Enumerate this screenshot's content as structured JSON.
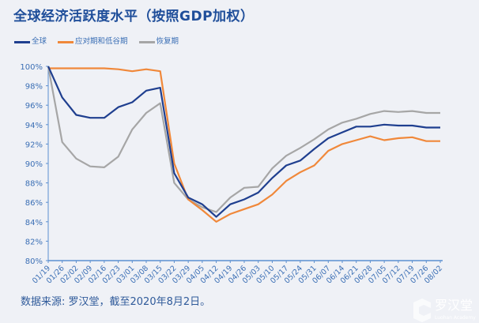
{
  "chart_data": {
    "type": "line",
    "title": "全球经济活跃度水平（按照GDP加权）",
    "xlabel": "",
    "ylabel": "",
    "ylim": [
      80,
      100
    ],
    "yticks": [
      "80%",
      "82%",
      "84%",
      "86%",
      "88%",
      "90%",
      "92%",
      "94%",
      "96%",
      "98%",
      "100%"
    ],
    "categories": [
      "01/19",
      "01/26",
      "02/02",
      "02/09",
      "02/16",
      "02/23",
      "03/01",
      "03/08",
      "03/15",
      "03/22",
      "03/29",
      "04/05",
      "04/12",
      "04/19",
      "04/26",
      "05/03",
      "05/10",
      "05/17",
      "05/24",
      "05/31",
      "06/07",
      "06/14",
      "06/21",
      "06/28",
      "07/05",
      "07/12",
      "07/19",
      "07/26",
      "08/02"
    ],
    "grid": false,
    "legend": "top-left",
    "series": [
      {
        "name": "全球",
        "color": "#1f3f8f",
        "values": [
          100,
          96.8,
          95.0,
          94.7,
          94.7,
          95.8,
          96.3,
          97.5,
          97.8,
          89.0,
          86.5,
          85.8,
          84.5,
          85.8,
          86.3,
          87.0,
          88.5,
          89.8,
          90.3,
          91.5,
          92.6,
          93.2,
          93.8,
          93.8,
          94.0,
          93.9,
          93.9,
          93.7,
          93.7
        ]
      },
      {
        "name": "应对期和低谷期",
        "color": "#f0883a",
        "values": [
          99.8,
          99.8,
          99.8,
          99.8,
          99.8,
          99.7,
          99.5,
          99.7,
          99.5,
          90.0,
          86.3,
          85.2,
          84.0,
          84.8,
          85.3,
          85.8,
          86.8,
          88.2,
          89.1,
          89.8,
          91.3,
          92.0,
          92.4,
          92.8,
          92.4,
          92.6,
          92.7,
          92.3,
          92.3
        ]
      },
      {
        "name": "恢复期",
        "color": "#a6a6a6",
        "values": [
          100,
          92.2,
          90.5,
          89.7,
          89.6,
          90.7,
          93.5,
          95.2,
          96.2,
          88.0,
          86.3,
          85.5,
          85.0,
          86.5,
          87.5,
          87.6,
          89.5,
          90.8,
          91.6,
          92.5,
          93.5,
          94.2,
          94.6,
          95.1,
          95.4,
          95.3,
          95.4,
          95.2,
          95.2
        ]
      }
    ]
  },
  "source": "数据来源: 罗汉堂，截至2020年8月2日。",
  "logo": {
    "name": "罗汉堂",
    "sub": "Luohan Academy"
  }
}
